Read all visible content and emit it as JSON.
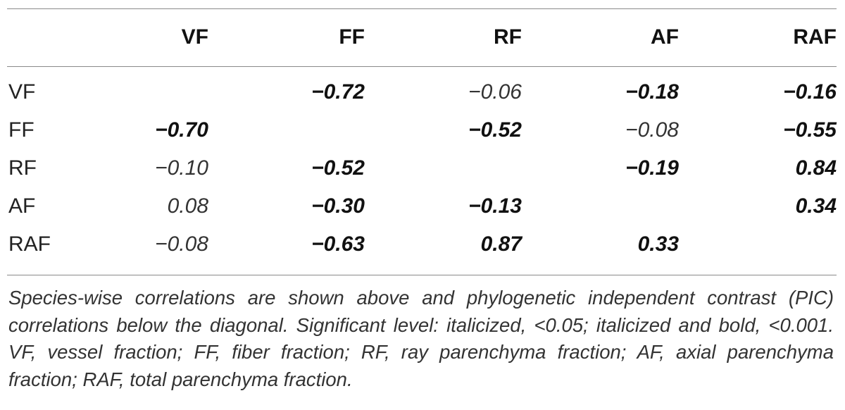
{
  "table": {
    "columns": [
      "VF",
      "FF",
      "RF",
      "AF",
      "RAF"
    ],
    "rows": [
      {
        "label": "VF",
        "cells": [
          {
            "v": "",
            "s": "empty"
          },
          {
            "v": "−0.72",
            "s": "bi"
          },
          {
            "v": "−0.06",
            "s": "it"
          },
          {
            "v": "−0.18",
            "s": "bi"
          },
          {
            "v": "−0.16",
            "s": "bi"
          }
        ]
      },
      {
        "label": "FF",
        "cells": [
          {
            "v": "−0.70",
            "s": "bi"
          },
          {
            "v": "",
            "s": "empty"
          },
          {
            "v": "−0.52",
            "s": "bi"
          },
          {
            "v": "−0.08",
            "s": "it"
          },
          {
            "v": "−0.55",
            "s": "bi"
          }
        ]
      },
      {
        "label": "RF",
        "cells": [
          {
            "v": "−0.10",
            "s": "it"
          },
          {
            "v": "−0.52",
            "s": "bi"
          },
          {
            "v": "",
            "s": "empty"
          },
          {
            "v": "−0.19",
            "s": "bi"
          },
          {
            "v": "0.84",
            "s": "bi"
          }
        ]
      },
      {
        "label": "AF",
        "cells": [
          {
            "v": "0.08",
            "s": "it"
          },
          {
            "v": "−0.30",
            "s": "bi"
          },
          {
            "v": "−0.13",
            "s": "bi"
          },
          {
            "v": "",
            "s": "empty"
          },
          {
            "v": "0.34",
            "s": "bi"
          }
        ]
      },
      {
        "label": "RAF",
        "cells": [
          {
            "v": "−0.08",
            "s": "it"
          },
          {
            "v": "−0.63",
            "s": "bi"
          },
          {
            "v": "0.87",
            "s": "bi"
          },
          {
            "v": "0.33",
            "s": "bi"
          },
          {
            "v": "",
            "s": "empty"
          }
        ]
      }
    ]
  },
  "footnote": "Species-wise correlations are shown above and phylogenetic independent contrast (PIC) correlations below the diagonal. Significant level: italicized, <0.05; italicized and bold, <0.001. VF, vessel fraction; FF, fiber fraction; RF, ray parenchyma fraction; AF, axial parenchyma fraction; RAF, total parenchyma fraction."
}
